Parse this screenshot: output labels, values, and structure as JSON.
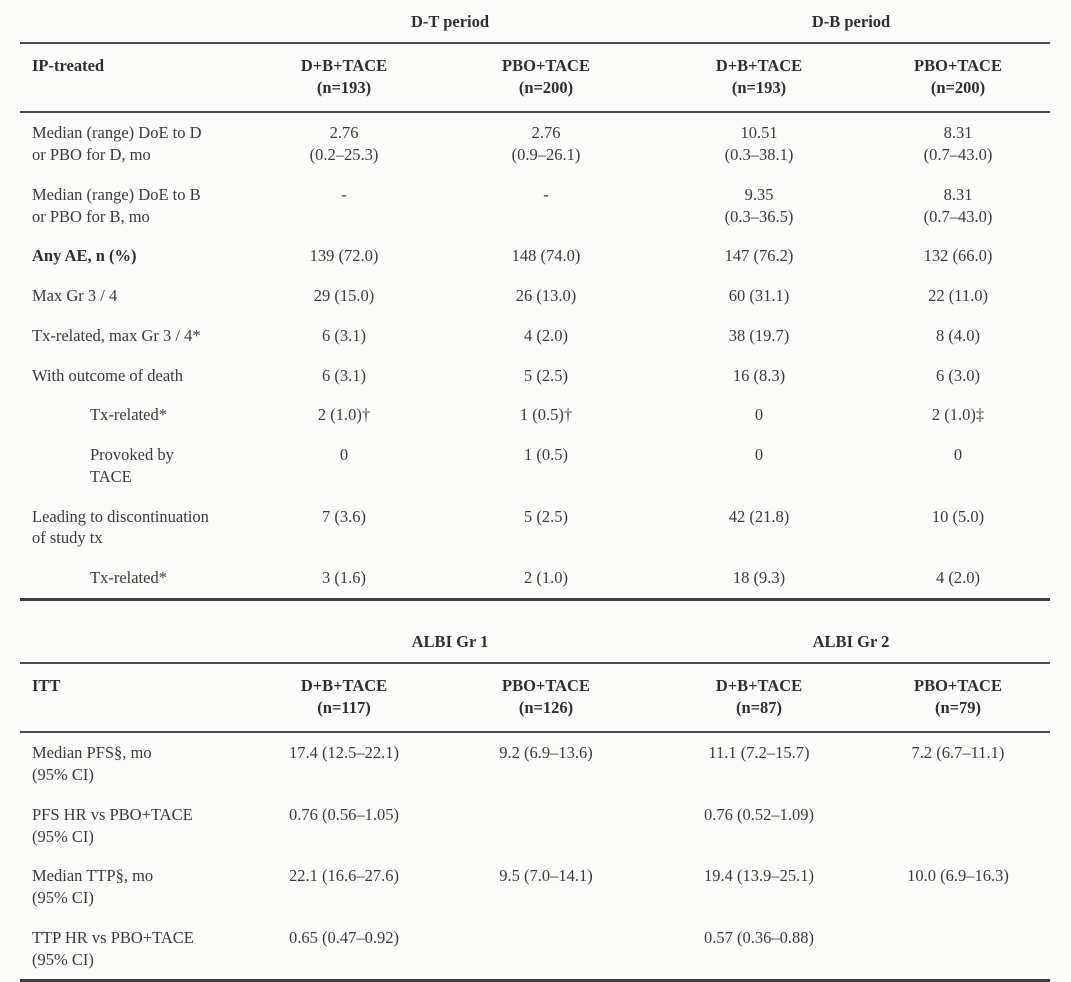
{
  "page": {
    "background_color": "#fbfbf9",
    "text_color": "#3b3b3b",
    "rule_color": "#4b4b4b"
  },
  "table1": {
    "spanners": [
      "D-T period",
      "D-B period"
    ],
    "stub_header": "IP-treated",
    "col_headers": [
      "D+B+TACE\n(n=193)",
      "PBO+TACE\n(n=200)",
      "D+B+TACE\n(n=193)",
      "PBO+TACE\n(n=200)"
    ],
    "rows": [
      {
        "label": "Median (range) DoE to D\nor PBO for D, mo",
        "cells": [
          "2.76\n(0.2–25.3)",
          "2.76\n(0.9–26.1)",
          "10.51\n(0.3–38.1)",
          "8.31\n(0.7–43.0)"
        ]
      },
      {
        "label": "Median (range) DoE to B\nor PBO for B, mo",
        "cells": [
          "-",
          "-",
          "9.35\n(0.3–36.5)",
          "8.31\n(0.7–43.0)"
        ]
      },
      {
        "label": "Any AE, n (%)",
        "cells": [
          "139 (72.0)",
          "148 (74.0)",
          "147 (76.2)",
          "132 (66.0)"
        ]
      },
      {
        "label": "Max Gr 3 / 4",
        "cells": [
          "29 (15.0)",
          "26 (13.0)",
          "60 (31.1)",
          "22 (11.0)"
        ]
      },
      {
        "label": "Tx-related, max Gr 3 / 4*",
        "cells": [
          "6 (3.1)",
          "4 (2.0)",
          "38 (19.7)",
          "8 (4.0)"
        ]
      },
      {
        "label": "With outcome of death",
        "cells": [
          "6 (3.1)",
          "5 (2.5)",
          "16 (8.3)",
          "6 (3.0)"
        ]
      },
      {
        "label": "Tx-related*",
        "cells": [
          "2 (1.0)†",
          "1 (0.5)†",
          "0",
          "2 (1.0)‡"
        ]
      },
      {
        "label": "Provoked by\nTACE",
        "cells": [
          "0",
          "1 (0.5)",
          "0",
          "0"
        ]
      },
      {
        "label": "Leading to discontinuation\nof study tx",
        "cells": [
          "7 (3.6)",
          "5 (2.5)",
          "42 (21.8)",
          "10 (5.0)"
        ]
      },
      {
        "label": "Tx-related*",
        "cells": [
          "3 (1.6)",
          "2 (1.0)",
          "18 (9.3)",
          "4 (2.0)"
        ]
      }
    ]
  },
  "table2": {
    "spanners": [
      "ALBI Gr 1",
      "ALBI Gr 2"
    ],
    "stub_header": "ITT",
    "col_headers": [
      "D+B+TACE\n(n=117)",
      "PBO+TACE\n(n=126)",
      "D+B+TACE\n(n=87)",
      "PBO+TACE\n(n=79)"
    ],
    "rows": [
      {
        "label": "Median PFS§, mo\n(95% CI)",
        "cells": [
          "17.4 (12.5–22.1)",
          "9.2 (6.9–13.6)",
          "11.1 (7.2–15.7)",
          "7.2 (6.7–11.1)"
        ]
      },
      {
        "label": "PFS HR vs PBO+TACE\n(95% CI)",
        "cells": [
          "0.76 (0.56–1.05)",
          "",
          "0.76 (0.52–1.09)",
          ""
        ]
      },
      {
        "label": "Median TTP§, mo\n(95% CI)",
        "cells": [
          "22.1 (16.6–27.6)",
          "9.5 (7.0–14.1)",
          "19.4 (13.9–25.1)",
          "10.0 (6.9–16.3)"
        ]
      },
      {
        "label": "TTP HR vs PBO+TACE\n(95% CI)",
        "cells": [
          "0.65 (0.47–0.92)",
          "",
          "0.57 (0.36–0.88)",
          ""
        ]
      }
    ]
  }
}
